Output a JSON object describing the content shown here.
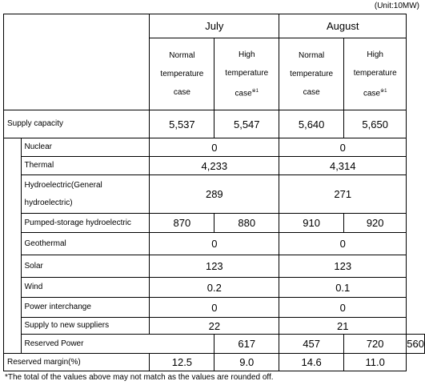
{
  "unit": "(Unit:10MW)",
  "months": [
    "July",
    "August"
  ],
  "cases": [
    {
      "l1": "Normal",
      "l2": "temperature",
      "l3": "case",
      "mark": ""
    },
    {
      "l1": "High",
      "l2": "temperature",
      "l3": "case",
      "mark": "※1"
    },
    {
      "l1": "Normal",
      "l2": "temperature",
      "l3": "case",
      "mark": ""
    },
    {
      "l1": "High",
      "l2": "temperature",
      "l3": "case",
      "mark": "※1"
    }
  ],
  "supply": {
    "label": "Supply capacity",
    "values": [
      "5,537",
      "5,547",
      "5,640",
      "5,650"
    ]
  },
  "nuclear": {
    "label": "Nuclear",
    "july": "0",
    "august": "0"
  },
  "thermal": {
    "label": "Thermal",
    "july": "4,233",
    "august": "4,314"
  },
  "hydro": {
    "label1": "Hydroelectric(General",
    "label2": "hydroelectric)",
    "july": "289",
    "august": "271"
  },
  "pumped": {
    "label": "Pumped-storage hydroelectric",
    "values": [
      "870",
      "880",
      "910",
      "920"
    ]
  },
  "geothermal": {
    "label": "Geothermal",
    "july": "0",
    "august": "0"
  },
  "solar": {
    "label": "Solar",
    "july": "123",
    "august": "123"
  },
  "wind": {
    "label": "Wind",
    "july": "0.2",
    "august": "0.1"
  },
  "interchange": {
    "label": "Power interchange",
    "july": "0",
    "august": "0"
  },
  "newsuppliers": {
    "label": "Supply to new suppliers",
    "july": "22",
    "august": "21"
  },
  "reserved_power": {
    "label": "Reserved Power",
    "values": [
      "617",
      "457",
      "720",
      "560"
    ]
  },
  "reserved_margin": {
    "label": "Reserved margin(%)",
    "values": [
      "12.5",
      "9.0",
      "14.6",
      "11.0"
    ]
  },
  "note": "*The total of the values above may not match as the values are rounded off."
}
